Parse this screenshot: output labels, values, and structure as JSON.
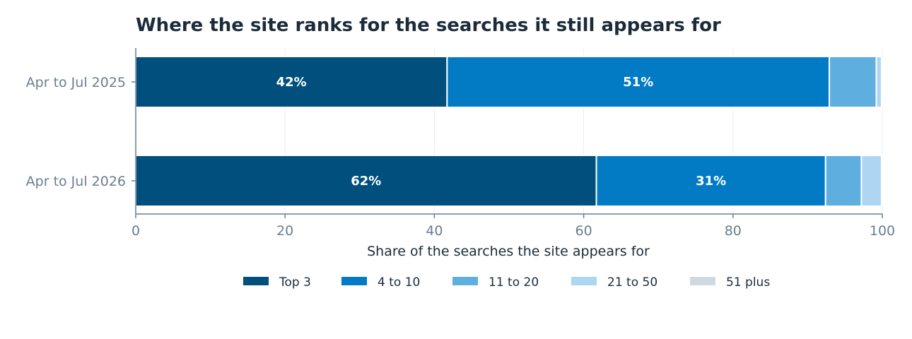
{
  "chart_data": {
    "type": "bar",
    "orientation": "horizontal",
    "stacked": true,
    "title": "Where the site ranks for the searches it still appears for",
    "xlabel": "Share of the searches the site appears for",
    "ylabel": "",
    "xlim": [
      0,
      100
    ],
    "xticks": [
      0,
      20,
      40,
      60,
      80,
      100
    ],
    "grid": true,
    "legend_position": "bottom",
    "categories": [
      "Apr to Jul 2025",
      "Apr to Jul 2026"
    ],
    "series": [
      {
        "name": "Top 3",
        "color": "#004f7c",
        "values": [
          41.7,
          61.7
        ],
        "labels": [
          "42%",
          "62%"
        ]
      },
      {
        "name": "4 to 10",
        "color": "#037bc4",
        "values": [
          51.2,
          30.7
        ],
        "labels": [
          "51%",
          "31%"
        ]
      },
      {
        "name": "11 to 20",
        "color": "#5faee0",
        "values": [
          6.3,
          4.8
        ],
        "labels": [
          "",
          ""
        ]
      },
      {
        "name": "21 to 50",
        "color": "#aed5f2",
        "values": [
          0.7,
          2.7
        ],
        "labels": [
          "",
          ""
        ]
      },
      {
        "name": "51 plus",
        "color": "#d1d9e0",
        "values": [
          0.1,
          0.1
        ],
        "labels": [
          "",
          ""
        ]
      }
    ]
  }
}
